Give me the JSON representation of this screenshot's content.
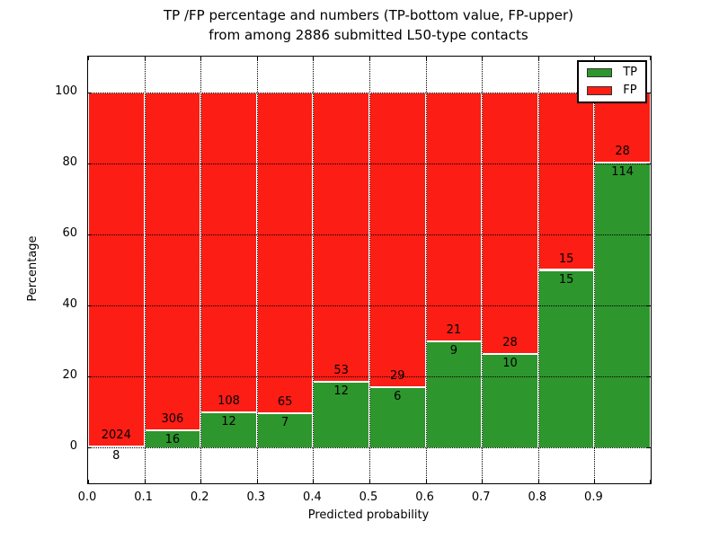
{
  "figure": {
    "title_line1": "TP /FP percentage and numbers (TP-bottom value, FP-upper)",
    "title_line2": "from among 2886 submitted L50-type contacts"
  },
  "axes": {
    "xlabel": "Predicted probability",
    "ylabel": "Percentage",
    "xtick_labels": [
      "0.0",
      "0.1",
      "0.2",
      "0.3",
      "0.4",
      "0.5",
      "0.6",
      "0.7",
      "0.8",
      "0.9"
    ],
    "ytick_labels": [
      "0",
      "20",
      "40",
      "60",
      "80",
      "100"
    ],
    "ytick_values": [
      0,
      20,
      40,
      60,
      80,
      100
    ],
    "xlim": [
      0.0,
      1.0
    ],
    "ylim": [
      -10,
      110
    ],
    "grid_style": "dotted"
  },
  "legend": {
    "position": "upper-right",
    "items": [
      {
        "label": "TP",
        "color": "#2d962d"
      },
      {
        "label": "FP",
        "color": "#fc1d14"
      }
    ]
  },
  "chart_data": {
    "type": "bar",
    "stacked": true,
    "normalized_to": 100,
    "title": "TP /FP percentage and numbers (TP-bottom value, FP-upper) from among 2886 submitted L50-type contacts",
    "xlabel": "Predicted probability",
    "ylabel": "Percentage",
    "total_contacts": 2886,
    "bin_edges": [
      0.0,
      0.1,
      0.2,
      0.3,
      0.4,
      0.5,
      0.6,
      0.7,
      0.8,
      0.9,
      1.0
    ],
    "series": [
      {
        "name": "TP",
        "color": "#2d962d",
        "counts": [
          8,
          16,
          12,
          7,
          12,
          6,
          9,
          10,
          15,
          114
        ]
      },
      {
        "name": "FP",
        "color": "#fc1d14",
        "counts": [
          2024,
          306,
          108,
          65,
          53,
          29,
          21,
          28,
          15,
          28
        ]
      }
    ],
    "tp_percent": [
      0.39,
      4.97,
      10.0,
      9.72,
      18.46,
      17.14,
      30.0,
      26.32,
      50.0,
      80.28
    ],
    "fp_percent": [
      99.61,
      95.03,
      90.0,
      90.28,
      81.54,
      82.86,
      70.0,
      73.68,
      50.0,
      19.72
    ],
    "bar_edge_color": "#ffffff",
    "ylim": [
      -10,
      110
    ],
    "grid": true
  }
}
